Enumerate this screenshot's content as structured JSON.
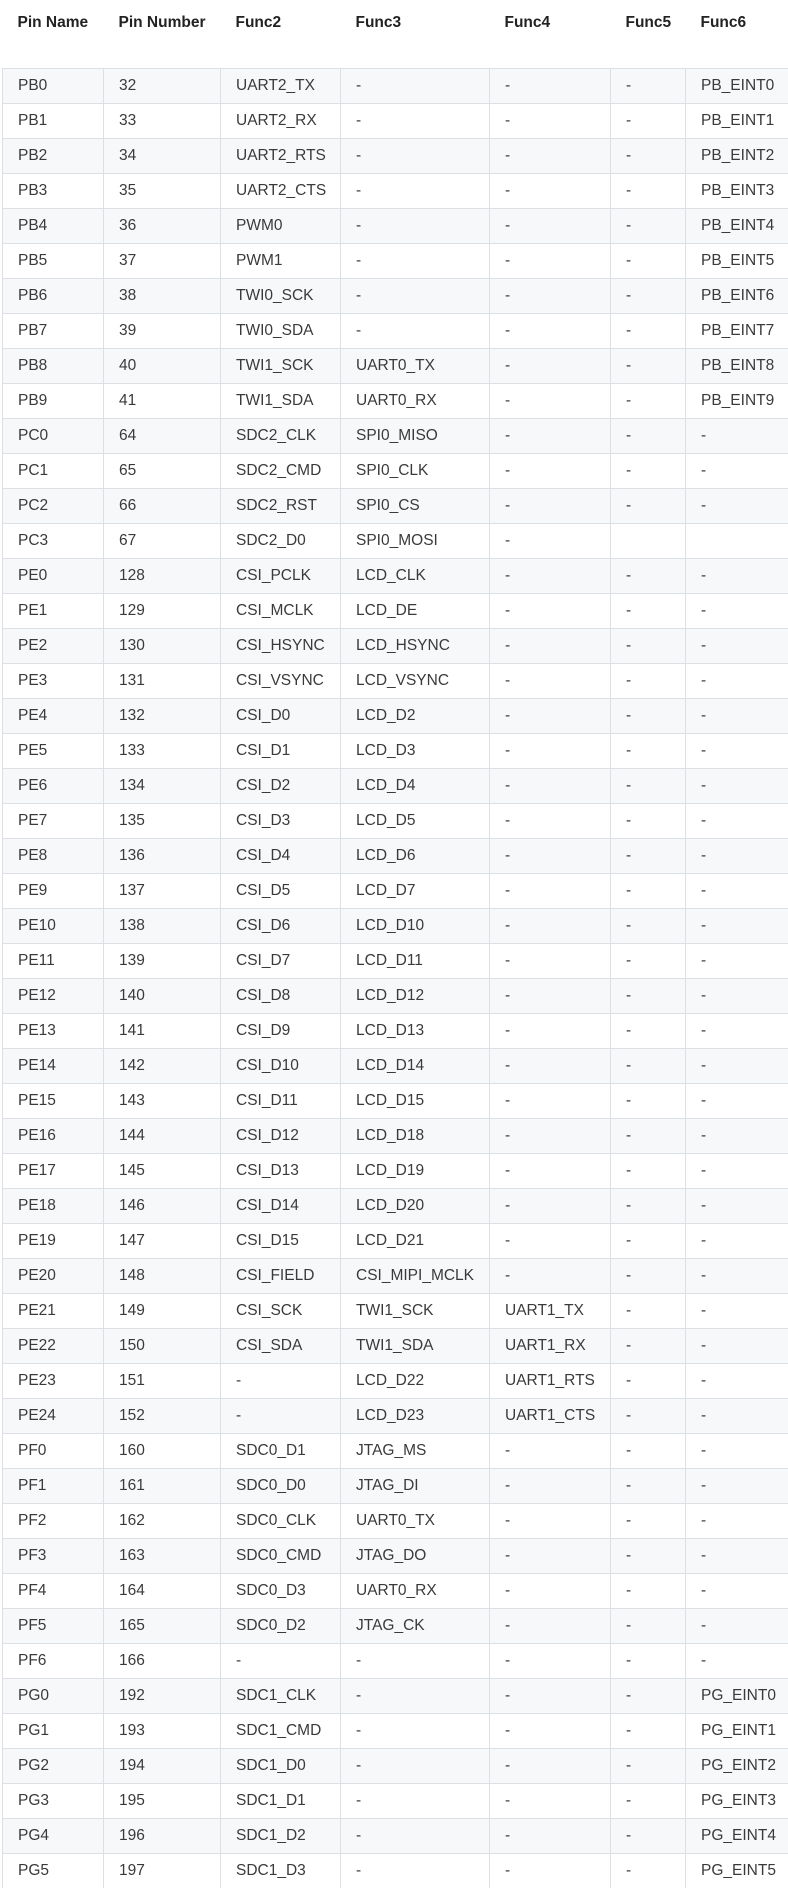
{
  "table": {
    "headers": [
      "Pin Name",
      "Pin Number",
      "Func2",
      "Func3",
      "Func4",
      "Func5",
      "Func6"
    ],
    "rows": [
      [
        "PB0",
        "32",
        "UART2_TX",
        "-",
        "-",
        "-",
        "PB_EINT0"
      ],
      [
        "PB1",
        "33",
        "UART2_RX",
        "-",
        "-",
        "-",
        "PB_EINT1"
      ],
      [
        "PB2",
        "34",
        "UART2_RTS",
        "-",
        "-",
        "-",
        "PB_EINT2"
      ],
      [
        "PB3",
        "35",
        "UART2_CTS",
        "-",
        "-",
        "-",
        "PB_EINT3"
      ],
      [
        "PB4",
        "36",
        "PWM0",
        "-",
        "-",
        "-",
        "PB_EINT4"
      ],
      [
        "PB5",
        "37",
        "PWM1",
        "-",
        "-",
        "-",
        "PB_EINT5"
      ],
      [
        "PB6",
        "38",
        "TWI0_SCK",
        "-",
        "-",
        "-",
        "PB_EINT6"
      ],
      [
        "PB7",
        "39",
        "TWI0_SDA",
        "-",
        "-",
        "-",
        "PB_EINT7"
      ],
      [
        "PB8",
        "40",
        "TWI1_SCK",
        "UART0_TX",
        "-",
        "-",
        "PB_EINT8"
      ],
      [
        "PB9",
        "41",
        "TWI1_SDA",
        "UART0_RX",
        "-",
        "-",
        "PB_EINT9"
      ],
      [
        "PC0",
        "64",
        "SDC2_CLK",
        "SPI0_MISO",
        "-",
        "-",
        "-"
      ],
      [
        "PC1",
        "65",
        "SDC2_CMD",
        "SPI0_CLK",
        "-",
        "-",
        "-"
      ],
      [
        "PC2",
        "66",
        "SDC2_RST",
        "SPI0_CS",
        "-",
        "-",
        "-"
      ],
      [
        "PC3",
        "67",
        "SDC2_D0",
        "SPI0_MOSI",
        "-",
        "",
        ""
      ],
      [
        "PE0",
        "128",
        "CSI_PCLK",
        "LCD_CLK",
        "-",
        "-",
        "-"
      ],
      [
        "PE1",
        "129",
        "CSI_MCLK",
        "LCD_DE",
        "-",
        "-",
        "-"
      ],
      [
        "PE2",
        "130",
        "CSI_HSYNC",
        "LCD_HSYNC",
        "-",
        "-",
        "-"
      ],
      [
        "PE3",
        "131",
        "CSI_VSYNC",
        "LCD_VSYNC",
        "-",
        "-",
        "-"
      ],
      [
        "PE4",
        "132",
        "CSI_D0",
        "LCD_D2",
        "-",
        "-",
        "-"
      ],
      [
        "PE5",
        "133",
        "CSI_D1",
        "LCD_D3",
        "-",
        "-",
        "-"
      ],
      [
        "PE6",
        "134",
        "CSI_D2",
        "LCD_D4",
        "-",
        "-",
        "-"
      ],
      [
        "PE7",
        "135",
        "CSI_D3",
        "LCD_D5",
        "-",
        "-",
        "-"
      ],
      [
        "PE8",
        "136",
        "CSI_D4",
        "LCD_D6",
        "-",
        "-",
        "-"
      ],
      [
        "PE9",
        "137",
        "CSI_D5",
        "LCD_D7",
        "-",
        "-",
        "-"
      ],
      [
        "PE10",
        "138",
        "CSI_D6",
        "LCD_D10",
        "-",
        "-",
        "-"
      ],
      [
        "PE11",
        "139",
        "CSI_D7",
        "LCD_D11",
        "-",
        "-",
        "-"
      ],
      [
        "PE12",
        "140",
        "CSI_D8",
        "LCD_D12",
        "-",
        "-",
        "-"
      ],
      [
        "PE13",
        "141",
        "CSI_D9",
        "LCD_D13",
        "-",
        "-",
        "-"
      ],
      [
        "PE14",
        "142",
        "CSI_D10",
        "LCD_D14",
        "-",
        "-",
        "-"
      ],
      [
        "PE15",
        "143",
        "CSI_D11",
        "LCD_D15",
        "-",
        "-",
        "-"
      ],
      [
        "PE16",
        "144",
        "CSI_D12",
        "LCD_D18",
        "-",
        "-",
        "-"
      ],
      [
        "PE17",
        "145",
        "CSI_D13",
        "LCD_D19",
        "-",
        "-",
        "-"
      ],
      [
        "PE18",
        "146",
        "CSI_D14",
        "LCD_D20",
        "-",
        "-",
        "-"
      ],
      [
        "PE19",
        "147",
        "CSI_D15",
        "LCD_D21",
        "-",
        "-",
        "-"
      ],
      [
        "PE20",
        "148",
        "CSI_FIELD",
        "CSI_MIPI_MCLK",
        "-",
        "-",
        "-"
      ],
      [
        "PE21",
        "149",
        "CSI_SCK",
        "TWI1_SCK",
        "UART1_TX",
        "-",
        "-"
      ],
      [
        "PE22",
        "150",
        "CSI_SDA",
        "TWI1_SDA",
        "UART1_RX",
        "-",
        "-"
      ],
      [
        "PE23",
        "151",
        "-",
        "LCD_D22",
        "UART1_RTS",
        "-",
        "-"
      ],
      [
        "PE24",
        "152",
        "-",
        "LCD_D23",
        "UART1_CTS",
        "-",
        "-"
      ],
      [
        "PF0",
        "160",
        "SDC0_D1",
        "JTAG_MS",
        "-",
        "-",
        "-"
      ],
      [
        "PF1",
        "161",
        "SDC0_D0",
        "JTAG_DI",
        "-",
        "-",
        "-"
      ],
      [
        "PF2",
        "162",
        "SDC0_CLK",
        "UART0_TX",
        "-",
        "-",
        "-"
      ],
      [
        "PF3",
        "163",
        "SDC0_CMD",
        "JTAG_DO",
        "-",
        "-",
        "-"
      ],
      [
        "PF4",
        "164",
        "SDC0_D3",
        "UART0_RX",
        "-",
        "-",
        "-"
      ],
      [
        "PF5",
        "165",
        "SDC0_D2",
        "JTAG_CK",
        "-",
        "-",
        "-"
      ],
      [
        "PF6",
        "166",
        "-",
        "-",
        "-",
        "-",
        "-"
      ],
      [
        "PG0",
        "192",
        "SDC1_CLK",
        "-",
        "-",
        "-",
        "PG_EINT0"
      ],
      [
        "PG1",
        "193",
        "SDC1_CMD",
        "-",
        "-",
        "-",
        "PG_EINT1"
      ],
      [
        "PG2",
        "194",
        "SDC1_D0",
        "-",
        "-",
        "-",
        "PG_EINT2"
      ],
      [
        "PG3",
        "195",
        "SDC1_D1",
        "-",
        "-",
        "-",
        "PG_EINT3"
      ],
      [
        "PG4",
        "196",
        "SDC1_D2",
        "-",
        "-",
        "-",
        "PG_EINT4"
      ],
      [
        "PG5",
        "197",
        "SDC1_D3",
        "-",
        "-",
        "-",
        "PG_EINT5"
      ]
    ]
  }
}
